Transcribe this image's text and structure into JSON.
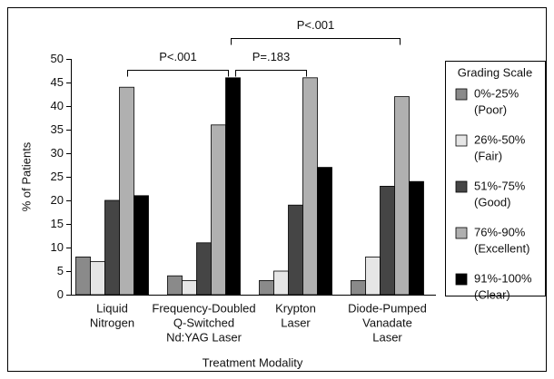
{
  "chart_data": {
    "type": "bar",
    "x_label": "Treatment Modality",
    "y_label": "% of Patients",
    "categories": [
      [
        "Liquid",
        "Nitrogen"
      ],
      [
        "Frequency-Doubled",
        "Q-Switched",
        "Nd:YAG Laser"
      ],
      [
        "Krypton",
        "Laser"
      ],
      [
        "Diode-Pumped",
        "Vanadate",
        "Laser"
      ]
    ],
    "series": [
      {
        "name": "0%-25%",
        "sublabel": "(Poor)",
        "color": "#8a8a8a",
        "values": [
          8,
          4,
          3,
          3
        ]
      },
      {
        "name": "26%-50%",
        "sublabel": "(Fair)",
        "color": "#e6e6e6",
        "values": [
          7,
          3,
          5,
          8
        ]
      },
      {
        "name": "51%-75%",
        "sublabel": "(Good)",
        "color": "#454545",
        "values": [
          20,
          11,
          19,
          23
        ]
      },
      {
        "name": "76%-90%",
        "sublabel": "(Excellent)",
        "color": "#b0b0b0",
        "values": [
          44,
          36,
          46,
          42
        ]
      },
      {
        "name": "91%-100%",
        "sublabel": "(Clear)",
        "color": "#000000",
        "values": [
          21,
          46,
          27,
          24
        ]
      }
    ],
    "legend_title": "Grading Scale",
    "legend": "right",
    "ylim": [
      0,
      50
    ],
    "yticks": [
      0,
      5,
      10,
      15,
      20,
      25,
      30,
      35,
      40,
      45,
      50
    ],
    "annotations": [
      {
        "text": "P<.001",
        "from": 0,
        "to": 1
      },
      {
        "text": "P=.183",
        "from": 1,
        "to": 2
      },
      {
        "text": "P<.001",
        "from": 1,
        "to": 3
      }
    ]
  }
}
